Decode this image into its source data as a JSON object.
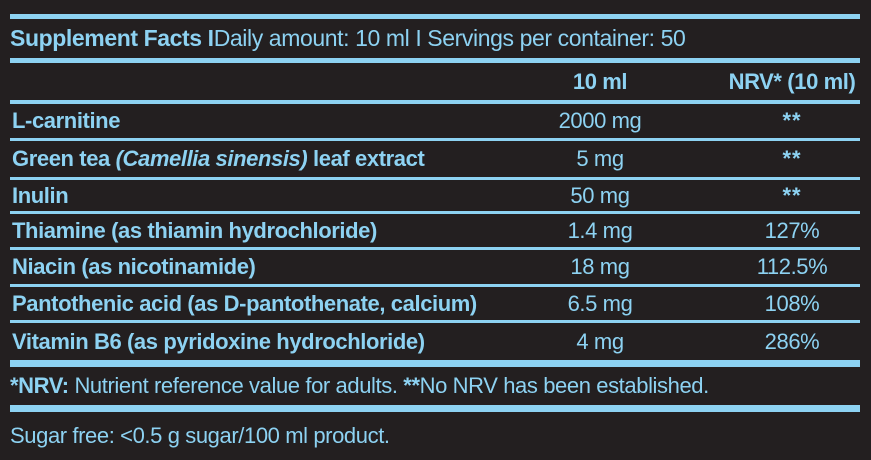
{
  "colors": {
    "accent": "#8DD2F2",
    "background": "#231F20"
  },
  "title": {
    "bold": "Supplement Facts I ",
    "regular": "Daily amount: 10 ml I Servings per container: 50"
  },
  "columns": {
    "amount": "10 ml",
    "nrv": "NRV* (10 ml)"
  },
  "rows": [
    {
      "name": "L-carnitine",
      "italic": "",
      "name_after": "",
      "amount": "2000 mg",
      "nrv": "**"
    },
    {
      "name": "Green tea ",
      "italic": "(Camellia sinensis)",
      "name_after": " leaf extract",
      "amount": "5 mg",
      "nrv": "**"
    },
    {
      "name": "Inulin",
      "italic": "",
      "name_after": "",
      "amount": "50 mg",
      "nrv": "**"
    },
    {
      "name": "Thiamine (as thiamin hydrochloride)",
      "italic": "",
      "name_after": "",
      "amount": "1.4 mg",
      "nrv": "127%"
    },
    {
      "name": "Niacin (as nicotinamide)",
      "italic": "",
      "name_after": "",
      "amount": "18 mg",
      "nrv": "112.5%"
    },
    {
      "name": "Pantothenic acid (as D-pantothenate, calcium)",
      "italic": "",
      "name_after": "",
      "amount": "6.5 mg",
      "nrv": "108%"
    },
    {
      "name": "Vitamin B6 (as pyridoxine hydrochloride)",
      "italic": "",
      "name_after": "",
      "amount": "4 mg",
      "nrv": "286%"
    }
  ],
  "footnote": {
    "bold1": "*NRV:",
    "text1": " Nutrient reference value for adults. ",
    "bold2": "**",
    "text2": "No NRV has been established."
  },
  "bottom_note": "Sugar free: <0.5 g sugar/100 ml product."
}
